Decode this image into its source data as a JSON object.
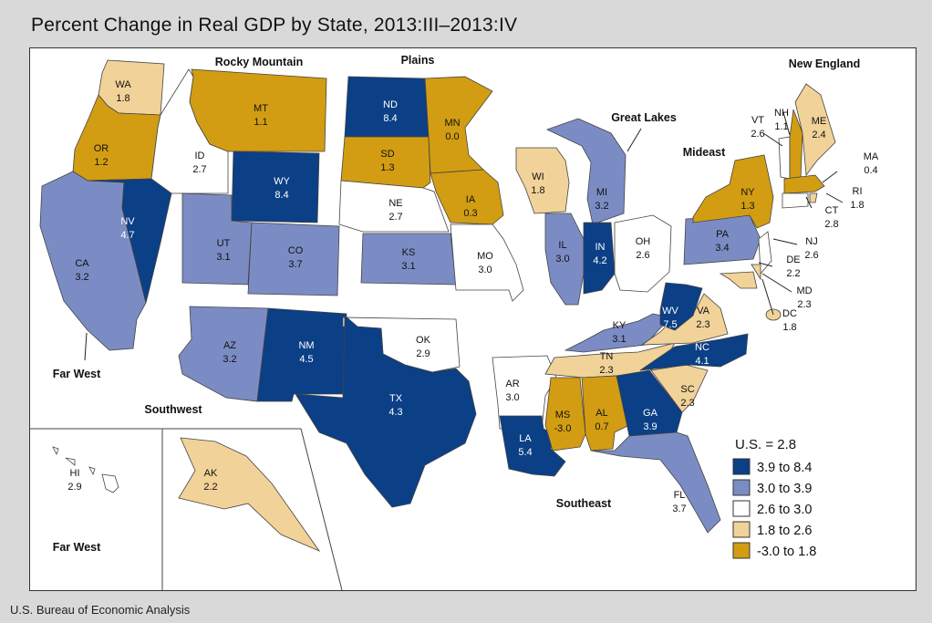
{
  "title": "Percent Change in Real GDP by State, 2013:III–2013:IV",
  "source": "U.S. Bureau of Economic Analysis",
  "colors": {
    "c1": "#0b3f86",
    "c2": "#7b8cc4",
    "c3": "#ffffff",
    "c4": "#f1d299",
    "c5": "#d29d12"
  },
  "legend": {
    "title": "U.S. = 2.8",
    "items": [
      {
        "label": "3.9 to 8.4",
        "color": "#0b3f86"
      },
      {
        "label": "3.0 to 3.9",
        "color": "#7b8cc4"
      },
      {
        "label": "2.6 to 3.0",
        "color": "#ffffff"
      },
      {
        "label": "1.8 to 2.6",
        "color": "#f1d299"
      },
      {
        "label": "-3.0 to 1.8",
        "color": "#d29d12"
      }
    ]
  },
  "regions": {
    "rocky_mountain": "Rocky Mountain",
    "plains": "Plains",
    "new_england": "New England",
    "great_lakes": "Great Lakes",
    "mideast": "Mideast",
    "far_west_top": "Far West",
    "southwest": "Southwest",
    "southeast": "Southeast",
    "far_west_bottom": "Far West"
  },
  "states": [
    {
      "code": "WA",
      "value": "1.8",
      "class": "c4"
    },
    {
      "code": "OR",
      "value": "1.2",
      "class": "c5"
    },
    {
      "code": "CA",
      "value": "3.2",
      "class": "c2"
    },
    {
      "code": "NV",
      "value": "4.7",
      "class": "c1"
    },
    {
      "code": "ID",
      "value": "2.7",
      "class": "c3"
    },
    {
      "code": "MT",
      "value": "1.1",
      "class": "c5"
    },
    {
      "code": "WY",
      "value": "8.4",
      "class": "c1"
    },
    {
      "code": "UT",
      "value": "3.1",
      "class": "c2"
    },
    {
      "code": "CO",
      "value": "3.7",
      "class": "c2"
    },
    {
      "code": "AZ",
      "value": "3.2",
      "class": "c2"
    },
    {
      "code": "NM",
      "value": "4.5",
      "class": "c1"
    },
    {
      "code": "ND",
      "value": "8.4",
      "class": "c1"
    },
    {
      "code": "SD",
      "value": "1.3",
      "class": "c5"
    },
    {
      "code": "NE",
      "value": "2.7",
      "class": "c3"
    },
    {
      "code": "KS",
      "value": "3.1",
      "class": "c2"
    },
    {
      "code": "OK",
      "value": "2.9",
      "class": "c3"
    },
    {
      "code": "TX",
      "value": "4.3",
      "class": "c1"
    },
    {
      "code": "MN",
      "value": "0.0",
      "class": "c5"
    },
    {
      "code": "IA",
      "value": "0.3",
      "class": "c5"
    },
    {
      "code": "MO",
      "value": "3.0",
      "class": "c3"
    },
    {
      "code": "AR",
      "value": "3.0",
      "class": "c3"
    },
    {
      "code": "LA",
      "value": "5.4",
      "class": "c1"
    },
    {
      "code": "WI",
      "value": "1.8",
      "class": "c4"
    },
    {
      "code": "IL",
      "value": "3.0",
      "class": "c2"
    },
    {
      "code": "MI",
      "value": "3.2",
      "class": "c2"
    },
    {
      "code": "IN",
      "value": "4.2",
      "class": "c1"
    },
    {
      "code": "OH",
      "value": "2.6",
      "class": "c3"
    },
    {
      "code": "KY",
      "value": "3.1",
      "class": "c2"
    },
    {
      "code": "TN",
      "value": "2.3",
      "class": "c4"
    },
    {
      "code": "MS",
      "value": "-3.0",
      "class": "c5"
    },
    {
      "code": "AL",
      "value": "0.7",
      "class": "c5"
    },
    {
      "code": "GA",
      "value": "3.9",
      "class": "c1"
    },
    {
      "code": "FL",
      "value": "3.7",
      "class": "c2"
    },
    {
      "code": "SC",
      "value": "2.3",
      "class": "c4"
    },
    {
      "code": "NC",
      "value": "4.1",
      "class": "c1"
    },
    {
      "code": "VA",
      "value": "2.3",
      "class": "c4"
    },
    {
      "code": "WV",
      "value": "7.5",
      "class": "c1"
    },
    {
      "code": "PA",
      "value": "3.4",
      "class": "c2"
    },
    {
      "code": "NY",
      "value": "1.3",
      "class": "c5"
    },
    {
      "code": "VT",
      "value": "2.6",
      "class": "c3"
    },
    {
      "code": "NH",
      "value": "1.1",
      "class": "c5"
    },
    {
      "code": "ME",
      "value": "2.4",
      "class": "c4"
    },
    {
      "code": "MA",
      "value": "0.4",
      "class": "c5"
    },
    {
      "code": "RI",
      "value": "1.8",
      "class": "c4"
    },
    {
      "code": "CT",
      "value": "2.8",
      "class": "c3"
    },
    {
      "code": "NJ",
      "value": "2.6",
      "class": "c3"
    },
    {
      "code": "DE",
      "value": "2.2",
      "class": "c4"
    },
    {
      "code": "MD",
      "value": "2.3",
      "class": "c4"
    },
    {
      "code": "DC",
      "value": "1.8",
      "class": "c4"
    },
    {
      "code": "AK",
      "value": "2.2",
      "class": "c4"
    },
    {
      "code": "HI",
      "value": "2.9",
      "class": "c3"
    }
  ]
}
